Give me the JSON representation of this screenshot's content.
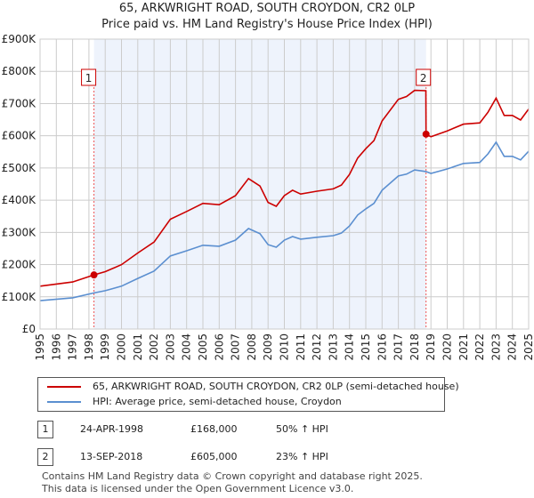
{
  "title_line1": "65, ARKWRIGHT ROAD, SOUTH CROYDON, CR2 0LP",
  "title_line2": "Price paid vs. HM Land Registry's House Price Index (HPI)",
  "chart_data": {
    "type": "line",
    "title": "Price paid vs. HM Land Registry's House Price Index (HPI)",
    "xlim": [
      1995,
      2025
    ],
    "ylim": [
      0,
      900000
    ],
    "yticks": [
      0,
      100000,
      200000,
      300000,
      400000,
      500000,
      600000,
      700000,
      800000,
      900000
    ],
    "ytick_labels": [
      "£0",
      "£100K",
      "£200K",
      "£300K",
      "£400K",
      "£500K",
      "£600K",
      "£700K",
      "£800K",
      "£900K"
    ],
    "xticks": [
      "1995",
      "1996",
      "1997",
      "1998",
      "1999",
      "2000",
      "2001",
      "2002",
      "2003",
      "2004",
      "2005",
      "2006",
      "2007",
      "2008",
      "2009",
      "2010",
      "2011",
      "2012",
      "2013",
      "2014",
      "2015",
      "2016",
      "2017",
      "2018",
      "2019",
      "2020",
      "2021",
      "2022",
      "2023",
      "2024",
      "2025"
    ],
    "grid": true,
    "series": [
      {
        "name": "65, ARKWRIGHT ROAD, SOUTH CROYDON, CR2 0LP (semi-detached house)",
        "color": "#cc0000",
        "x": [
          1995,
          1997,
          1998.31,
          1999,
          2000,
          2001,
          2002,
          2003,
          2004,
          2005,
          2006,
          2007,
          2007.8,
          2008.5,
          2009,
          2009.5,
          2010,
          2010.5,
          2011,
          2012,
          2013,
          2013.5,
          2014,
          2014.5,
          2015,
          2015.5,
          2016,
          2017,
          2017.5,
          2018,
          2018.69,
          2018.7,
          2019,
          2020,
          2021,
          2022,
          2022.5,
          2023,
          2023.5,
          2024,
          2024.5,
          2025
        ],
        "y": [
          133000,
          146000,
          168000,
          178000,
          200000,
          236000,
          270000,
          341000,
          365000,
          390000,
          386000,
          414000,
          467000,
          444000,
          393000,
          381000,
          414000,
          431000,
          419000,
          428000,
          435000,
          447000,
          480000,
          531000,
          560000,
          585000,
          646000,
          713000,
          722000,
          741000,
          740000,
          605000,
          597000,
          615000,
          636000,
          640000,
          673000,
          717000,
          663000,
          663000,
          649000,
          683000
        ]
      },
      {
        "name": "HPI: Average price, semi-detached house, Croydon",
        "color": "#5b8fd0",
        "x": [
          1995,
          1997,
          1998.31,
          1999,
          2000,
          2001,
          2002,
          2003,
          2004,
          2005,
          2006,
          2007,
          2007.8,
          2008.5,
          2009,
          2009.5,
          2010,
          2010.5,
          2011,
          2012,
          2013,
          2013.5,
          2014,
          2014.5,
          2015,
          2015.5,
          2016,
          2017,
          2017.5,
          2018,
          2018.7,
          2019,
          2020,
          2021,
          2022,
          2022.5,
          2023,
          2023.5,
          2024,
          2024.5,
          2025
        ],
        "y": [
          88000,
          97000,
          112000,
          119000,
          133000,
          157000,
          180000,
          227000,
          243000,
          260000,
          257000,
          276000,
          312000,
          296000,
          262000,
          254000,
          276000,
          287000,
          279000,
          285000,
          290000,
          298000,
          320000,
          354000,
          373000,
          390000,
          431000,
          475000,
          481000,
          494000,
          489000,
          483000,
          497000,
          514000,
          517000,
          544000,
          580000,
          536000,
          536000,
          525000,
          552000
        ]
      }
    ],
    "annotations": [
      {
        "label": "1",
        "x": 1998.31,
        "y": 168000
      },
      {
        "label": "2",
        "x": 2018.7,
        "y": 605000
      }
    ],
    "shaded_range": [
      1998.31,
      2018.7
    ]
  },
  "legend": {
    "red": "65, ARKWRIGHT ROAD, SOUTH CROYDON, CR2 0LP (semi-detached house)",
    "blue": "HPI: Average price, semi-detached house, Croydon"
  },
  "transactions": [
    {
      "num": "1",
      "date": "24-APR-1998",
      "price": "£168,000",
      "hpi": "50% ↑ HPI"
    },
    {
      "num": "2",
      "date": "13-SEP-2018",
      "price": "£605,000",
      "hpi": "23% ↑ HPI"
    }
  ],
  "footer_line1": "Contains HM Land Registry data © Crown copyright and database right 2025.",
  "footer_line2": "This data is licensed under the Open Government Licence v3.0."
}
